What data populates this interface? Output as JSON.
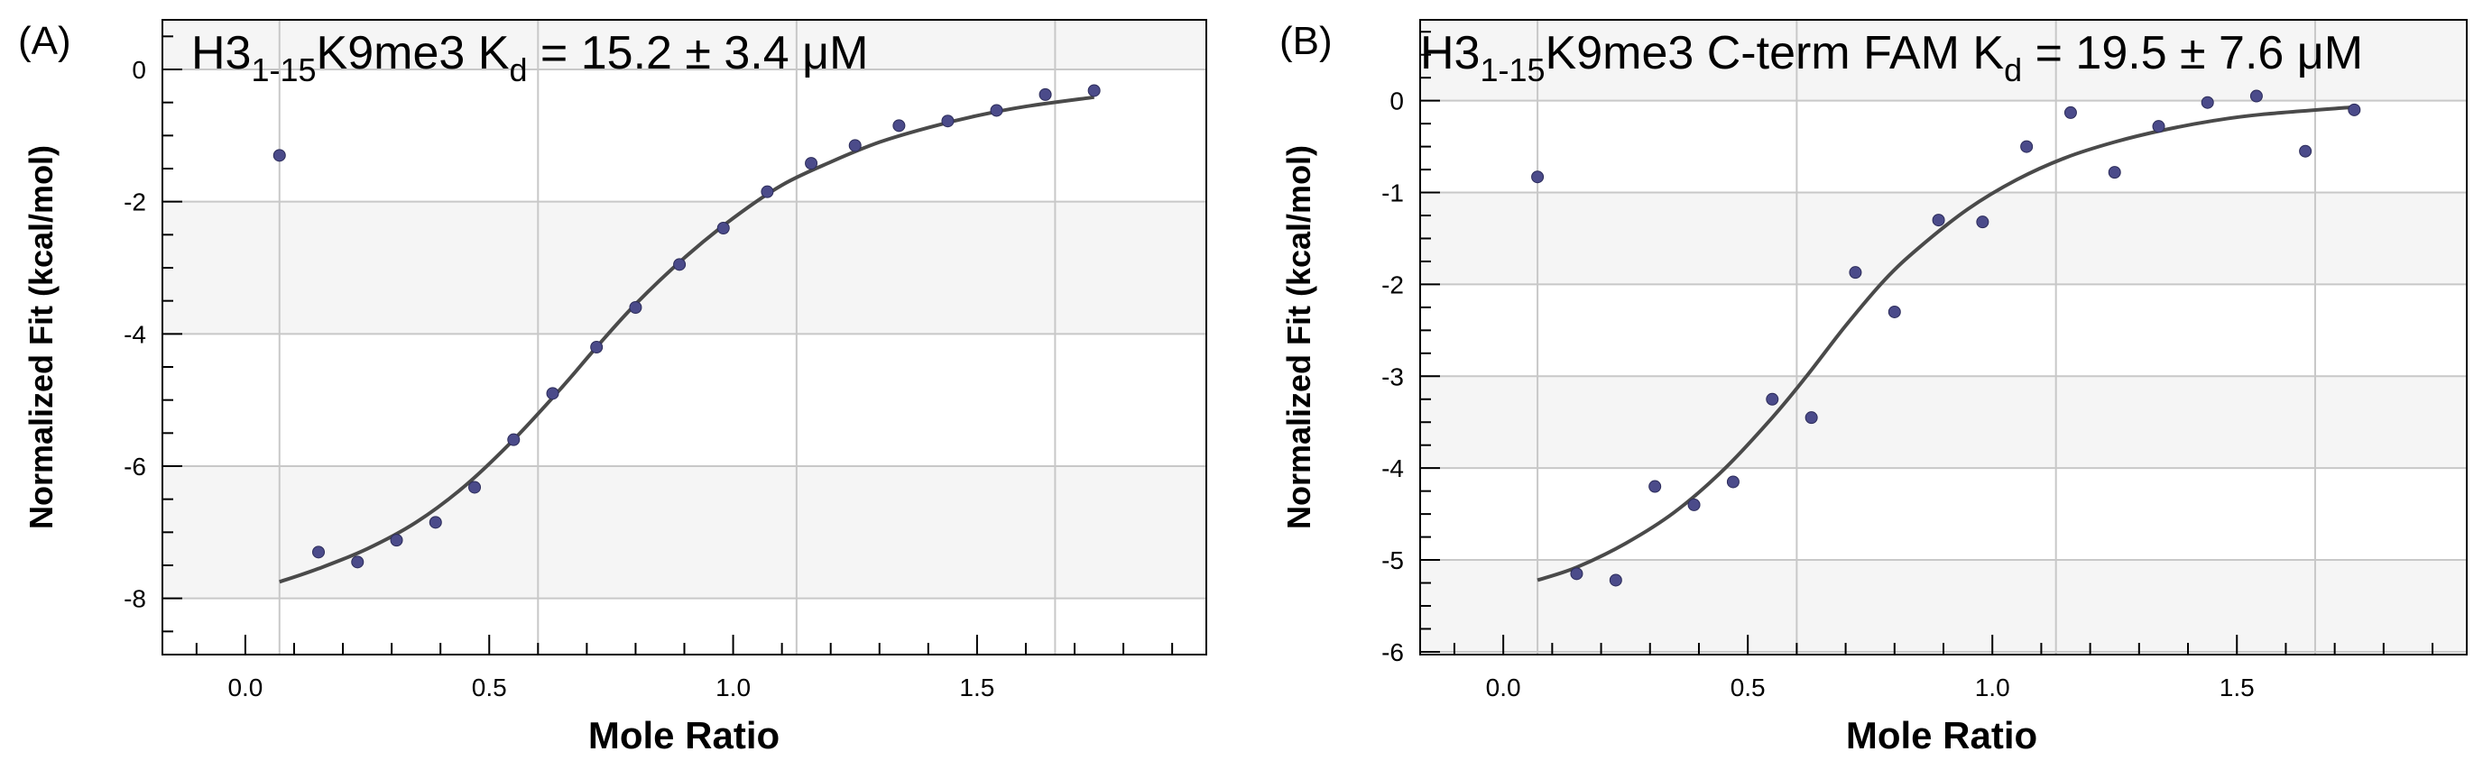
{
  "colors": {
    "band": "#f5f5f5",
    "plot_bg": "#ffffff",
    "grid": "#c8c8c8",
    "axis": "#000000",
    "point": "#4b4b8a",
    "fit": "#4a4a4a"
  },
  "chart_data": [
    {
      "type": "scatter",
      "panel_label": "(A)",
      "title": {
        "main": "H3",
        "subscript": "1-15",
        "mid": "K9me3 K",
        "kd_subscript": "d",
        "tail": " = 15.2 ± 3.4 μM"
      },
      "xlabel": "Mole Ratio",
      "ylabel": "Normalized Fit (kcal/mol)",
      "xlim": [
        -0.17,
        1.97
      ],
      "ylim": [
        -8.85,
        0.75
      ],
      "x_ticks": [
        0.0,
        0.5,
        1.0,
        1.5
      ],
      "x_tick_labels": [
        "0.0",
        "0.5",
        "1.0",
        "1.5"
      ],
      "y_ticks": [
        0,
        -2,
        -4,
        -6,
        -8
      ],
      "y_tick_labels": [
        "0",
        "-2",
        "-4",
        "-6",
        "-8"
      ],
      "x_minor_step": 0.1,
      "y_minor_step": 0.5,
      "x_grid": [
        0.07,
        0.6,
        1.13,
        1.66
      ],
      "series": [
        {
          "name": "data",
          "x": [
            0.07,
            0.15,
            0.23,
            0.31,
            0.39,
            0.47,
            0.55,
            0.63,
            0.72,
            0.8,
            0.89,
            0.98,
            1.07,
            1.16,
            1.25,
            1.34,
            1.44,
            1.54,
            1.64,
            1.74
          ],
          "y": [
            -1.3,
            -7.3,
            -7.45,
            -7.12,
            -6.85,
            -6.32,
            -5.6,
            -4.9,
            -4.2,
            -3.6,
            -2.95,
            -2.4,
            -1.85,
            -1.42,
            -1.15,
            -0.85,
            -0.78,
            -0.62,
            -0.38,
            -0.32
          ]
        }
      ],
      "fit": {
        "name": "fit",
        "x": [
          0.07,
          0.15,
          0.25,
          0.35,
          0.45,
          0.55,
          0.65,
          0.72,
          0.8,
          0.9,
          1.0,
          1.1,
          1.2,
          1.3,
          1.4,
          1.5,
          1.6,
          1.74
        ],
        "y": [
          -7.75,
          -7.55,
          -7.25,
          -6.85,
          -6.3,
          -5.6,
          -4.8,
          -4.2,
          -3.55,
          -2.85,
          -2.25,
          -1.75,
          -1.4,
          -1.1,
          -0.88,
          -0.7,
          -0.56,
          -0.42
        ]
      }
    },
    {
      "type": "scatter",
      "panel_label": "(B)",
      "title": {
        "main": "H3",
        "subscript": "1-15",
        "mid": "K9me3 C-term FAM K",
        "kd_subscript": "d",
        "tail": " = 19.5 ± 7.6 μM"
      },
      "xlabel": "Mole Ratio",
      "ylabel": "Normalized Fit (kcal/mol)",
      "xlim": [
        -0.17,
        1.97
      ],
      "ylim": [
        -6.03,
        0.88
      ],
      "x_ticks": [
        0.0,
        0.5,
        1.0,
        1.5
      ],
      "x_tick_labels": [
        "0.0",
        "0.5",
        "1.0",
        "1.5"
      ],
      "y_ticks": [
        0,
        -1,
        -2,
        -3,
        -4,
        -5,
        -6
      ],
      "y_tick_labels": [
        "0",
        "-1",
        "-2",
        "-3",
        "-4",
        "-5",
        "-6"
      ],
      "x_minor_step": 0.1,
      "y_minor_step": 0.25,
      "x_grid": [
        0.07,
        0.6,
        1.13,
        1.66
      ],
      "series": [
        {
          "name": "data",
          "x": [
            0.07,
            0.15,
            0.23,
            0.31,
            0.39,
            0.47,
            0.55,
            0.63,
            0.72,
            0.8,
            0.89,
            0.98,
            1.07,
            1.16,
            1.25,
            1.34,
            1.44,
            1.54,
            1.64,
            1.74
          ],
          "y": [
            -0.83,
            -5.15,
            -5.22,
            -4.2,
            -4.4,
            -4.15,
            -3.25,
            -3.45,
            -1.87,
            -2.3,
            -1.3,
            -1.32,
            -0.5,
            -0.13,
            -0.78,
            -0.28,
            -0.02,
            0.05,
            -0.55,
            -0.1
          ]
        }
      ],
      "fit": {
        "name": "fit",
        "x": [
          0.07,
          0.15,
          0.25,
          0.35,
          0.45,
          0.55,
          0.62,
          0.7,
          0.78,
          0.85,
          0.95,
          1.05,
          1.15,
          1.25,
          1.35,
          1.45,
          1.55,
          1.74
        ],
        "y": [
          -5.22,
          -5.08,
          -4.82,
          -4.48,
          -4.02,
          -3.45,
          -3.0,
          -2.45,
          -1.95,
          -1.6,
          -1.18,
          -0.86,
          -0.62,
          -0.45,
          -0.32,
          -0.22,
          -0.15,
          -0.07
        ]
      }
    }
  ]
}
